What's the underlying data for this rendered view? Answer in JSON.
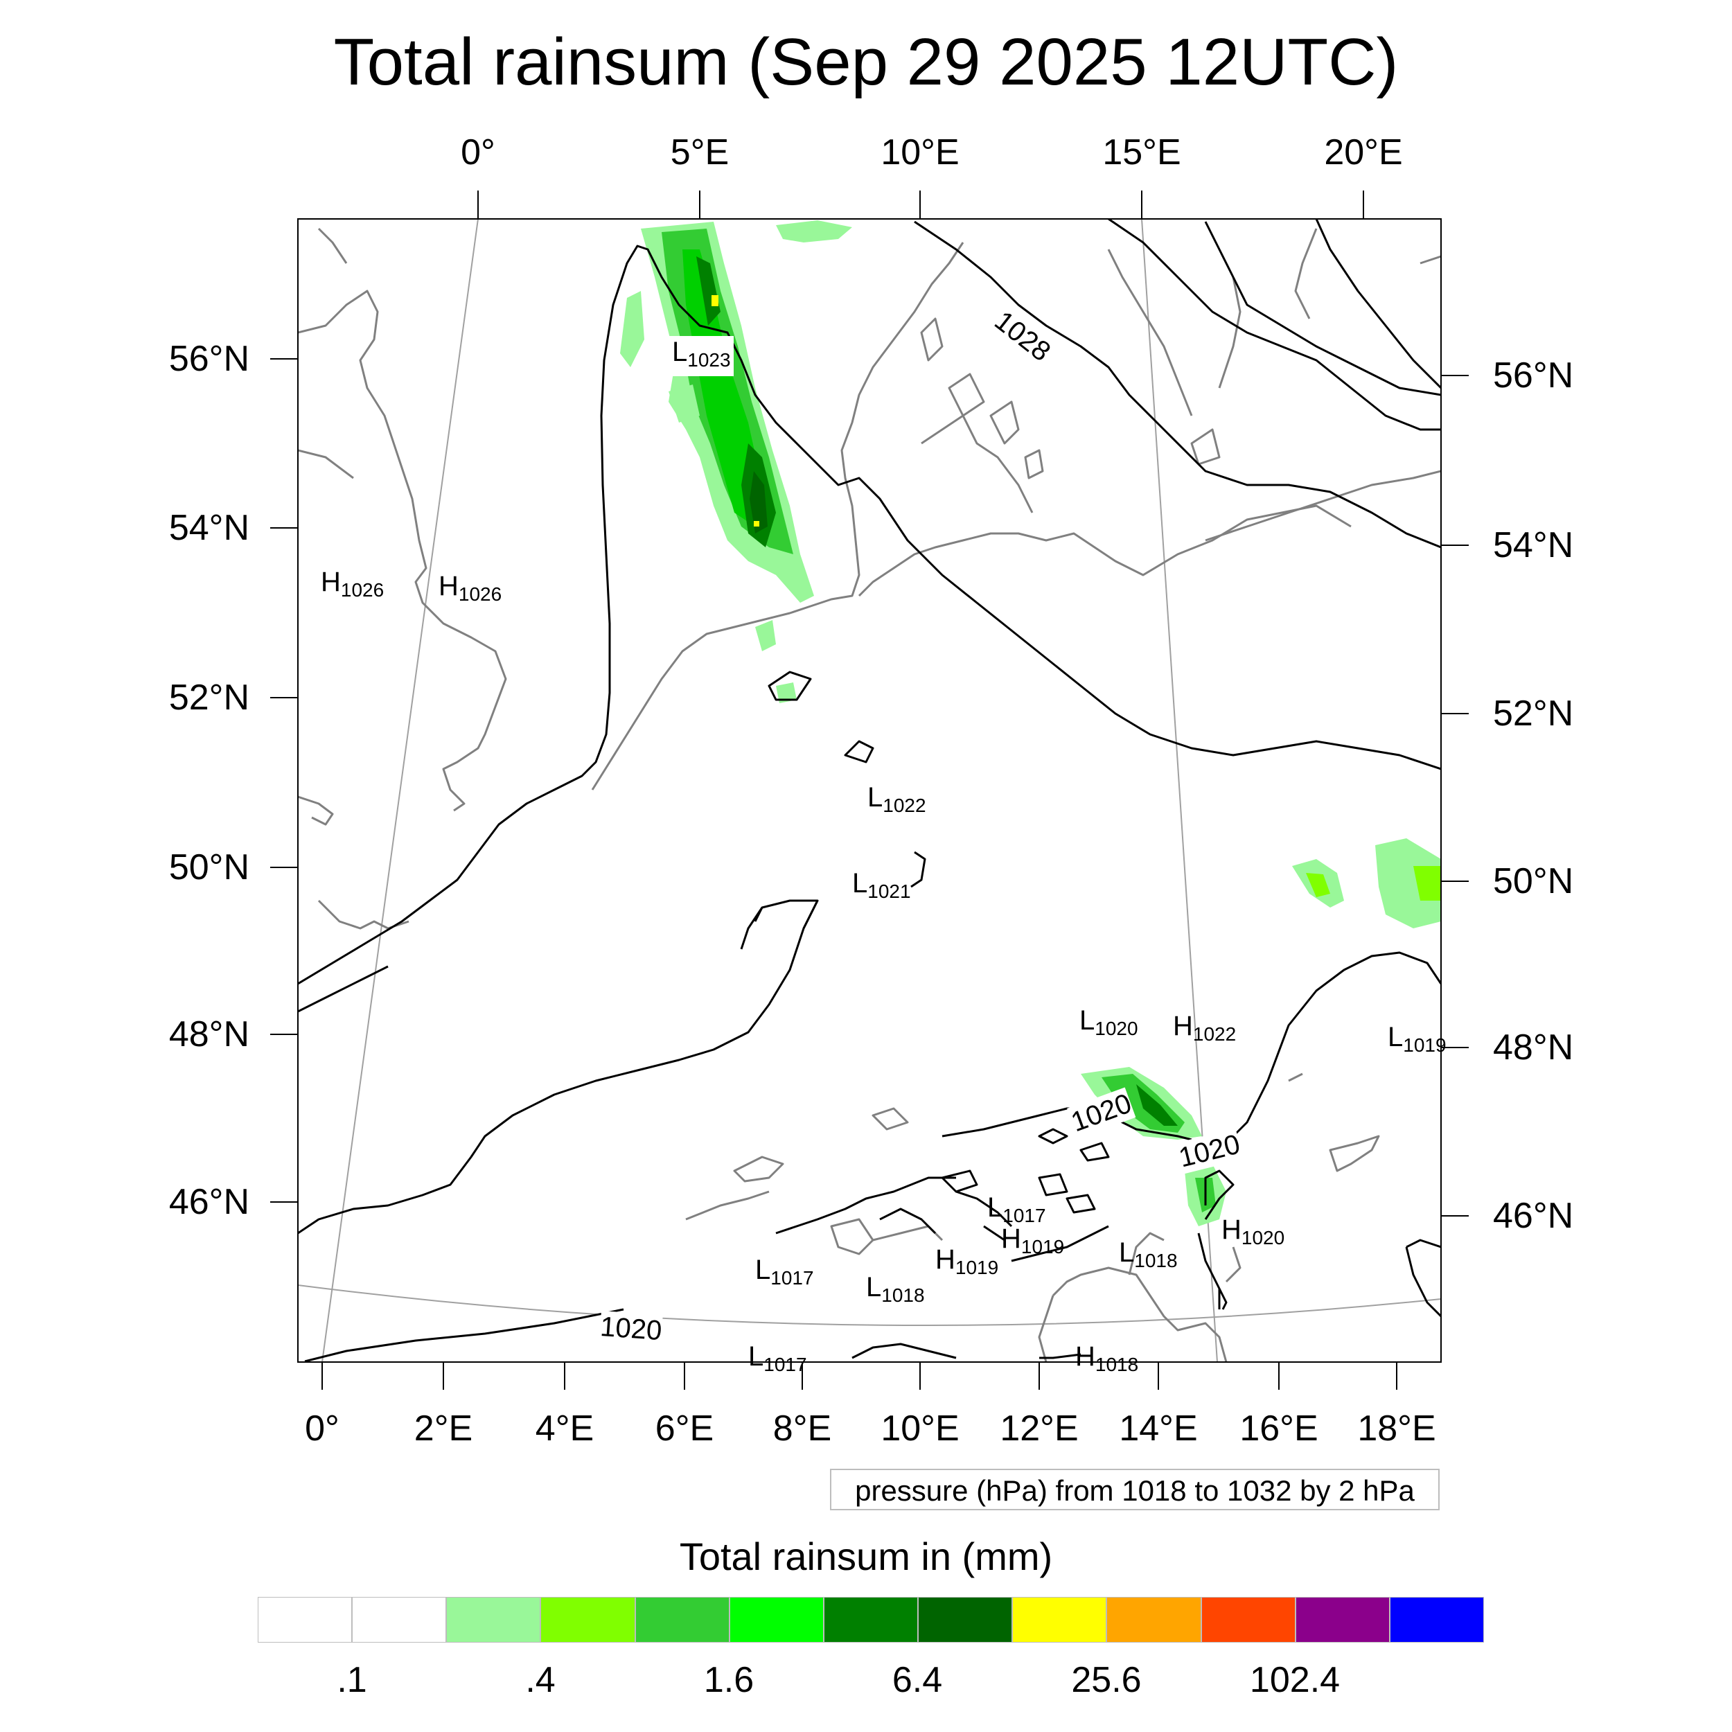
{
  "title": "Total rainsum (Sep 29 2025 12UTC)",
  "top_lon_labels": [
    "0°",
    "5°E",
    "10°E",
    "15°E",
    "20°E"
  ],
  "bottom_lon_labels": [
    "0°",
    "2°E",
    "4°E",
    "6°E",
    "8°E",
    "10°E",
    "12°E",
    "14°E",
    "16°E",
    "18°E"
  ],
  "left_lat_labels": [
    "56°N",
    "54°N",
    "52°N",
    "50°N",
    "48°N",
    "46°N"
  ],
  "right_lat_labels": [
    "56°N",
    "54°N",
    "52°N",
    "50°N",
    "48°N",
    "46°N"
  ],
  "pressure_centers": [
    {
      "type": "H",
      "value": "1026"
    },
    {
      "type": "H",
      "value": "1026"
    },
    {
      "type": "L",
      "value": "1023"
    },
    {
      "type": "L",
      "value": "1022"
    },
    {
      "type": "L",
      "value": "1021"
    },
    {
      "type": "L",
      "value": "1020"
    },
    {
      "type": "H",
      "value": "1022"
    },
    {
      "type": "L",
      "value": "1019"
    },
    {
      "type": "L",
      "value": "1017"
    },
    {
      "type": "H",
      "value": "1019"
    },
    {
      "type": "H",
      "value": "1019"
    },
    {
      "type": "L",
      "value": "1017"
    },
    {
      "type": "L",
      "value": "1018"
    },
    {
      "type": "L",
      "value": "1018"
    },
    {
      "type": "H",
      "value": "1020"
    },
    {
      "type": "L",
      "value": "1017"
    },
    {
      "type": "H",
      "value": "1018"
    }
  ],
  "contour_labels": [
    "1028",
    "1020",
    "1020",
    "1020"
  ],
  "info_text": "pressure (hPa) from 1018 to 1032 by 2 hPa",
  "legend": {
    "title": "Total rainsum in (mm)",
    "colors": [
      "#ffffff",
      "#ffffff",
      "#99f799",
      "#80ff00",
      "#33cc33",
      "#00ff00",
      "#008000",
      "#006400",
      "#ffff00",
      "#ffa500",
      "#ff4500",
      "#8b008b",
      "#0000ff"
    ],
    "labels": [
      ".1",
      ".4",
      "1.6",
      "6.4",
      "25.6",
      "102.4"
    ]
  },
  "colors": {
    "coastline": "#808080",
    "isobar": "#000000",
    "graticule": "#a0a0a0"
  }
}
